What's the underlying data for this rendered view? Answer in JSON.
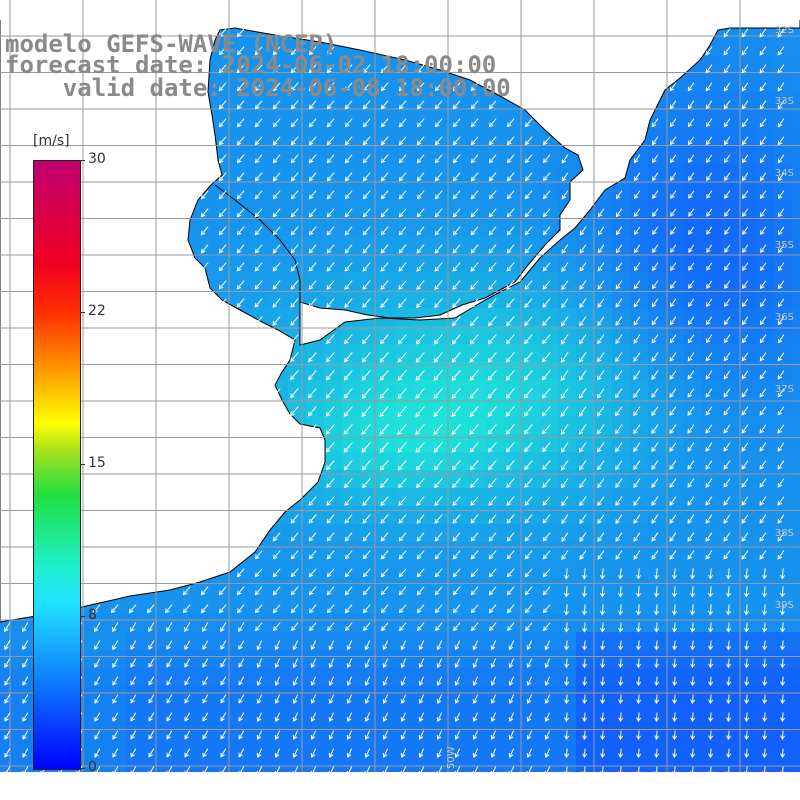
{
  "title": {
    "line1": "modelo GEFS-WAVE (NCEP)",
    "line2": "forecast date: 2024-06-02 18:00:00",
    "line3": "    valid date: 2024-06-08 18:00:00"
  },
  "legend": {
    "unit": "[m/s]",
    "ticks": [
      "30",
      "22",
      "15",
      "8",
      "0"
    ],
    "tick_values": [
      30,
      22,
      15,
      8,
      0
    ],
    "range": [
      0,
      30
    ]
  },
  "map": {
    "lat_labels": [
      "32S",
      "33S",
      "34S",
      "35S",
      "36S",
      "37S",
      "38S",
      "39S"
    ],
    "lon_labels": [
      "50W"
    ],
    "land_color": "#ffffff",
    "grid_color": "#9a9a9a",
    "coast_color": "#000000",
    "arrow_color": "#ffffff"
  },
  "colors": {
    "title": "#8a8a8a",
    "low": "#1050ff",
    "mid": "#20d8f0",
    "high": "#c00070"
  }
}
